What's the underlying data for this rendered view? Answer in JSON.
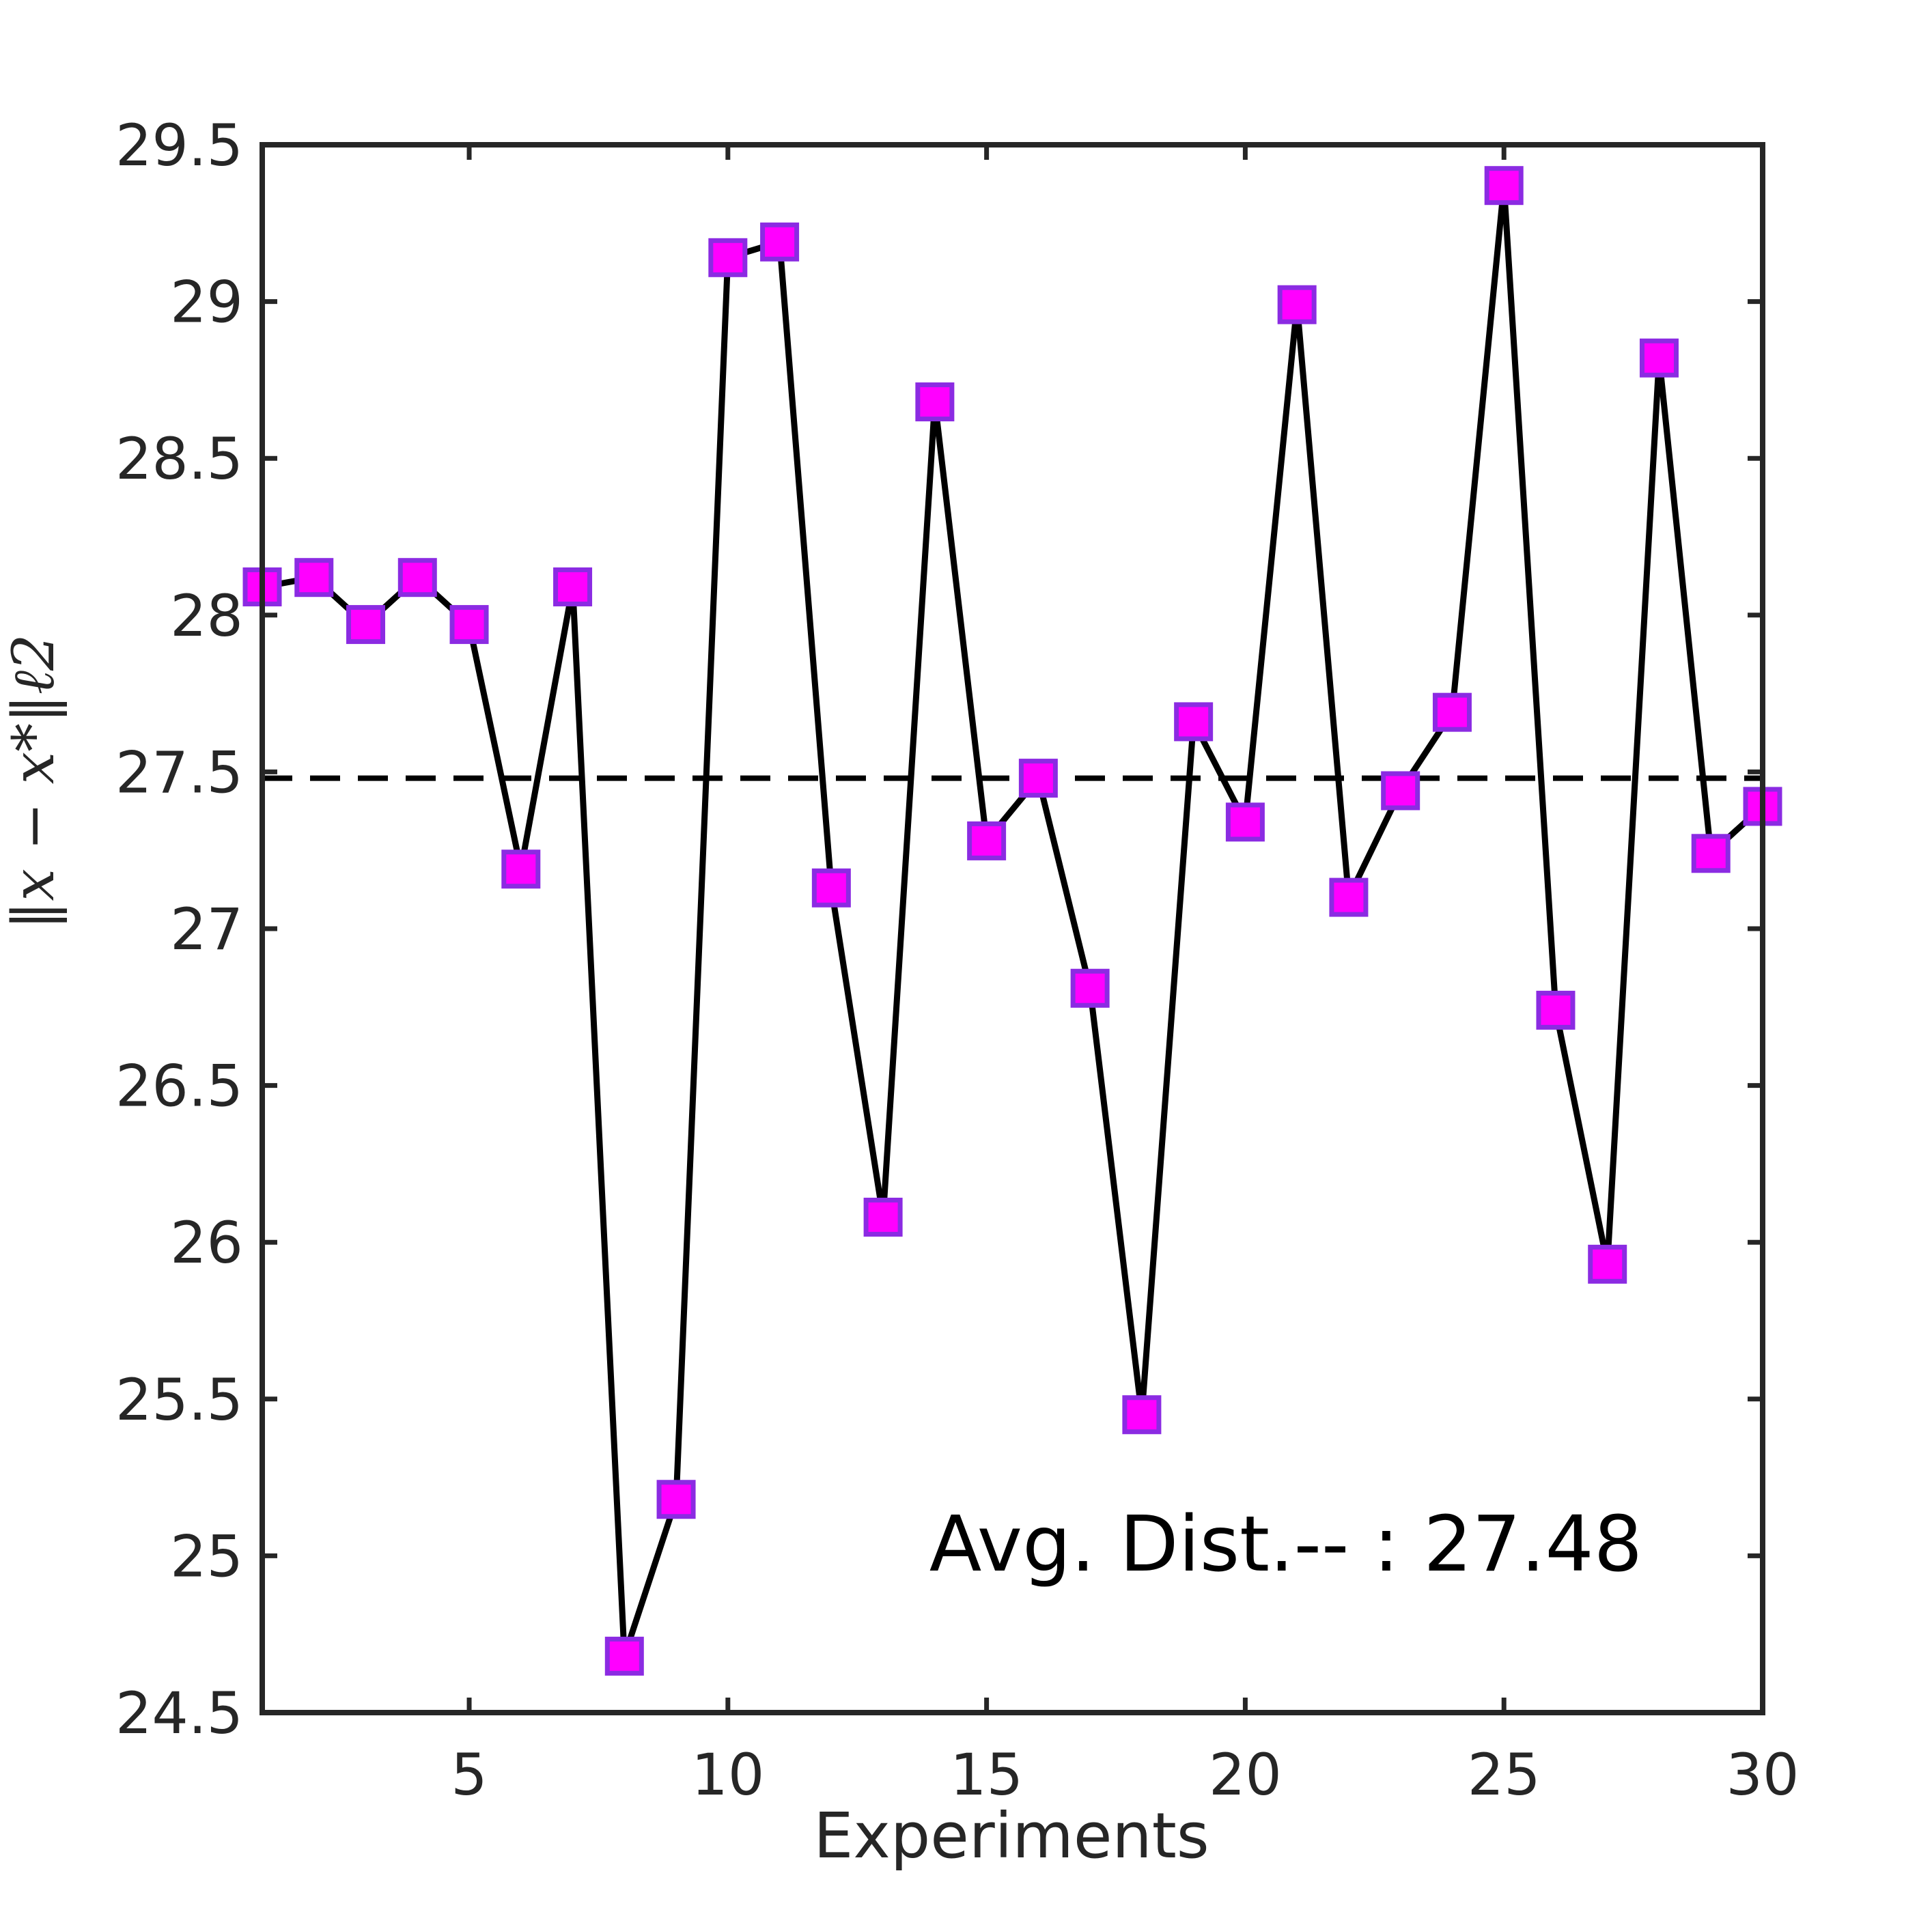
{
  "chart_data": {
    "type": "line",
    "xlabel": "Experiments",
    "ylabel": "‖x − x*‖ℓ2",
    "xlim": [
      1,
      30
    ],
    "ylim": [
      24.5,
      29.5
    ],
    "xticks": [
      "5",
      "10",
      "15",
      "20",
      "25",
      "30"
    ],
    "yticks": [
      "24.5",
      "25",
      "25.5",
      "26",
      "26.5",
      "27",
      "27.5",
      "28",
      "28.5",
      "29",
      "29.5"
    ],
    "grid": false,
    "series": [
      {
        "x": [
          1,
          2,
          3,
          4,
          5,
          6,
          7,
          8,
          9,
          10,
          11,
          12,
          13,
          14,
          15,
          16,
          17,
          18,
          19,
          20,
          21,
          22,
          23,
          24,
          25,
          26,
          27,
          28,
          29,
          30
        ],
        "values": [
          28.09,
          28.12,
          27.97,
          28.12,
          27.97,
          27.19,
          28.09,
          24.68,
          25.18,
          29.14,
          29.19,
          27.13,
          26.08,
          28.68,
          27.28,
          27.48,
          26.81,
          25.45,
          27.66,
          27.34,
          28.99,
          27.1,
          27.44,
          27.69,
          29.37,
          26.74,
          25.93,
          28.82,
          27.24,
          27.39
        ],
        "line_color": "#000000",
        "marker": "square",
        "marker_face_color": "#ff00ff",
        "marker_edge_color": "#8b2be2"
      }
    ],
    "reference_line": {
      "value": 27.48,
      "style": "dashed",
      "color": "#000000"
    },
    "annotation": {
      "text": "Avg. Dist.-- : 27.48",
      "position": "bottom-right"
    }
  }
}
